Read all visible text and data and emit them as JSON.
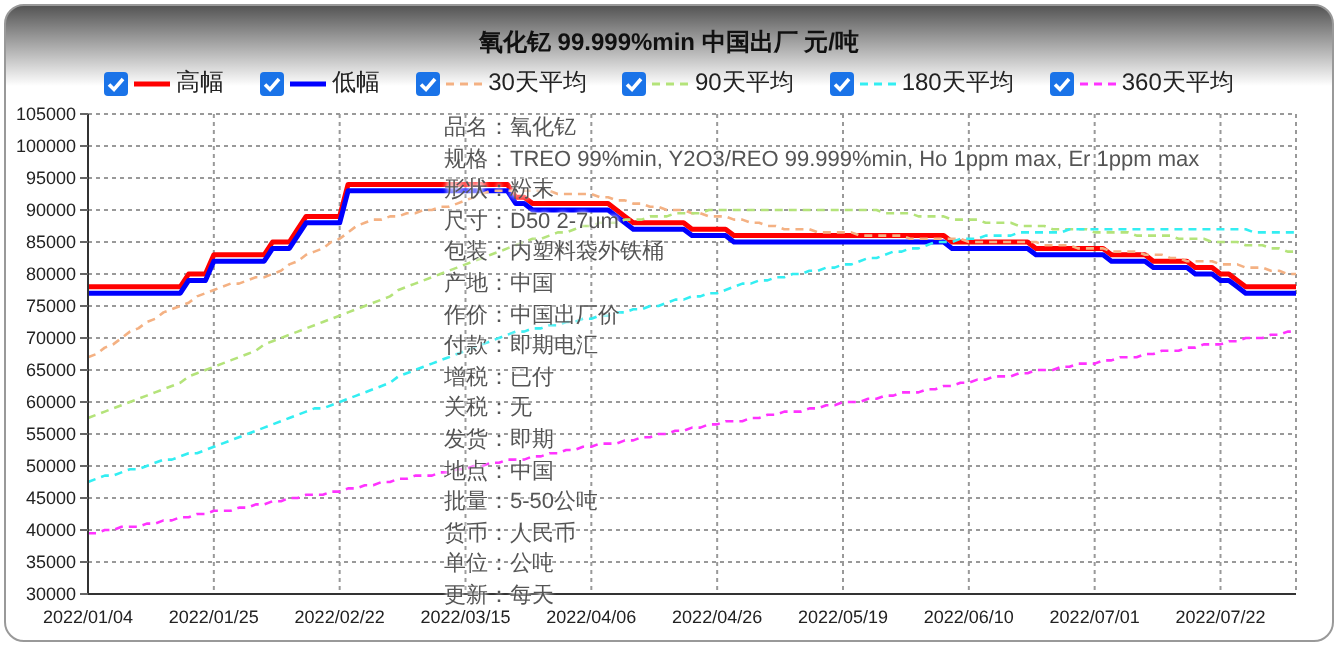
{
  "chart_data": {
    "type": "line",
    "title": "氧化钇 99.999%min 中国出厂 元/吨",
    "categories": [
      "2022/01/04",
      null,
      null,
      null,
      null,
      null,
      null,
      null,
      null,
      null,
      null,
      null,
      null,
      null,
      null,
      "2022/01/25",
      null,
      null,
      null,
      null,
      null,
      null,
      null,
      null,
      null,
      null,
      null,
      null,
      null,
      null,
      "2022/02/22",
      null,
      null,
      null,
      null,
      null,
      null,
      null,
      null,
      null,
      null,
      null,
      null,
      null,
      null,
      "2022/03/15",
      null,
      null,
      null,
      null,
      null,
      null,
      null,
      null,
      null,
      null,
      null,
      null,
      null,
      null,
      "2022/04/06",
      null,
      null,
      null,
      null,
      null,
      null,
      null,
      null,
      null,
      null,
      null,
      null,
      null,
      null,
      "2022/04/26",
      null,
      null,
      null,
      null,
      null,
      null,
      null,
      null,
      null,
      null,
      null,
      null,
      null,
      null,
      "2022/05/19",
      null,
      null,
      null,
      null,
      null,
      null,
      null,
      null,
      null,
      null,
      null,
      null,
      null,
      null,
      "2022/06/10",
      null,
      null,
      null,
      null,
      null,
      null,
      null,
      null,
      null,
      null,
      null,
      null,
      null,
      null,
      "2022/07/01",
      null,
      null,
      null,
      null,
      null,
      null,
      null,
      null,
      null,
      null,
      null,
      null,
      null,
      null,
      "2022/07/22",
      null,
      null,
      null,
      null,
      null,
      null,
      null,
      null,
      null
    ],
    "series": [
      {
        "name": "高幅",
        "color": "#ff0000",
        "line_style": "solid",
        "values": [
          78000,
          78000,
          78000,
          78000,
          78000,
          78000,
          78000,
          78000,
          78000,
          78000,
          78000,
          78000,
          80000,
          80000,
          80000,
          83000,
          83000,
          83000,
          83000,
          83000,
          83000,
          83000,
          85000,
          85000,
          85000,
          87000,
          89000,
          89000,
          89000,
          89000,
          89000,
          94000,
          94000,
          94000,
          94000,
          94000,
          94000,
          94000,
          94000,
          94000,
          94000,
          94000,
          94000,
          94000,
          94000,
          94000,
          94000,
          94000,
          94000,
          94000,
          94000,
          92000,
          92000,
          91000,
          91000,
          91000,
          91000,
          91000,
          91000,
          91000,
          91000,
          91000,
          91000,
          90000,
          89000,
          88000,
          88000,
          88000,
          88000,
          88000,
          88000,
          88000,
          87000,
          87000,
          87000,
          87000,
          87000,
          86000,
          86000,
          86000,
          86000,
          86000,
          86000,
          86000,
          86000,
          86000,
          86000,
          86000,
          86000,
          86000,
          86000,
          86000,
          86000,
          86000,
          86000,
          86000,
          86000,
          86000,
          86000,
          86000,
          86000,
          86000,
          86000,
          85000,
          85000,
          85000,
          85000,
          85000,
          85000,
          85000,
          85000,
          85000,
          85000,
          84000,
          84000,
          84000,
          84000,
          84000,
          84000,
          84000,
          84000,
          84000,
          83000,
          83000,
          83000,
          83000,
          83000,
          82000,
          82000,
          82000,
          82000,
          82000,
          81000,
          81000,
          81000,
          80000,
          80000,
          79000,
          78000,
          78000,
          78000,
          78000,
          78000,
          78000,
          78000
        ]
      },
      {
        "name": "低幅",
        "color": "#0000ff",
        "line_style": "solid",
        "values": [
          77000,
          77000,
          77000,
          77000,
          77000,
          77000,
          77000,
          77000,
          77000,
          77000,
          77000,
          77000,
          79000,
          79000,
          79000,
          82000,
          82000,
          82000,
          82000,
          82000,
          82000,
          82000,
          84000,
          84000,
          84000,
          86000,
          88000,
          88000,
          88000,
          88000,
          88000,
          93000,
          93000,
          93000,
          93000,
          93000,
          93000,
          93000,
          93000,
          93000,
          93000,
          93000,
          93000,
          93000,
          93000,
          93000,
          93000,
          93000,
          93000,
          93000,
          93000,
          91000,
          91000,
          90000,
          90000,
          90000,
          90000,
          90000,
          90000,
          90000,
          90000,
          90000,
          90000,
          89000,
          88000,
          87000,
          87000,
          87000,
          87000,
          87000,
          87000,
          87000,
          86000,
          86000,
          86000,
          86000,
          86000,
          85000,
          85000,
          85000,
          85000,
          85000,
          85000,
          85000,
          85000,
          85000,
          85000,
          85000,
          85000,
          85000,
          85000,
          85000,
          85000,
          85000,
          85000,
          85000,
          85000,
          85000,
          85000,
          85000,
          85000,
          85000,
          85000,
          84000,
          84000,
          84000,
          84000,
          84000,
          84000,
          84000,
          84000,
          84000,
          84000,
          83000,
          83000,
          83000,
          83000,
          83000,
          83000,
          83000,
          83000,
          83000,
          82000,
          82000,
          82000,
          82000,
          82000,
          81000,
          81000,
          81000,
          81000,
          81000,
          80000,
          80000,
          80000,
          79000,
          79000,
          78000,
          77000,
          77000,
          77000,
          77000,
          77000,
          77000,
          77000
        ]
      },
      {
        "name": "30天平均",
        "color": "#f4b183",
        "line_style": "dashed",
        "values": [
          67000,
          67500,
          68500,
          69000,
          70000,
          71000,
          71500,
          72500,
          73000,
          74000,
          74500,
          75000,
          75500,
          76500,
          77000,
          77500,
          78000,
          78500,
          78500,
          79000,
          79500,
          79500,
          80000,
          80500,
          81500,
          82000,
          83000,
          83500,
          84000,
          85000,
          85500,
          86500,
          87500,
          88000,
          88500,
          88500,
          89000,
          89000,
          89500,
          89500,
          90000,
          90000,
          90500,
          90500,
          91000,
          91500,
          92000,
          92500,
          93000,
          93000,
          93000,
          93000,
          93000,
          93000,
          93000,
          93000,
          92500,
          92500,
          92500,
          92500,
          92500,
          92000,
          92000,
          91500,
          91500,
          91000,
          91000,
          90500,
          90500,
          90000,
          90000,
          90000,
          89500,
          89500,
          89000,
          89000,
          89000,
          88500,
          88500,
          88000,
          88000,
          87500,
          87500,
          87000,
          87000,
          87000,
          87000,
          86500,
          86500,
          86500,
          86500,
          86500,
          86000,
          86000,
          86000,
          86000,
          86000,
          86000,
          85500,
          85500,
          85500,
          85500,
          85500,
          85500,
          85500,
          85000,
          85000,
          85000,
          85000,
          85000,
          85000,
          85000,
          85000,
          85000,
          84500,
          84500,
          84500,
          84500,
          84000,
          84000,
          84000,
          84000,
          83500,
          83500,
          83500,
          83500,
          83000,
          83000,
          83000,
          82500,
          82500,
          82000,
          82000,
          82000,
          82000,
          81500,
          81500,
          81500,
          81000,
          81000,
          81000,
          80500,
          80500,
          80000,
          80000
        ]
      },
      {
        "name": "90天平均",
        "color": "#b4e37a",
        "line_style": "dashed",
        "values": [
          57500,
          58000,
          58500,
          59000,
          59500,
          60000,
          60500,
          61000,
          61500,
          62000,
          62500,
          63000,
          64000,
          64500,
          65000,
          65500,
          66000,
          66500,
          67000,
          67500,
          68000,
          69000,
          69500,
          70000,
          70500,
          71000,
          71500,
          72000,
          72500,
          73000,
          73500,
          74000,
          74500,
          75000,
          75500,
          76000,
          76500,
          77500,
          78000,
          78500,
          79000,
          79500,
          80000,
          80500,
          81000,
          81500,
          82000,
          82500,
          83000,
          83500,
          84000,
          84500,
          85000,
          85500,
          85500,
          86000,
          86500,
          86500,
          87000,
          87500,
          87500,
          88000,
          88000,
          88000,
          88500,
          88500,
          88500,
          89000,
          89000,
          89000,
          89500,
          89500,
          89500,
          89500,
          90000,
          90000,
          90000,
          90000,
          90000,
          90000,
          90000,
          90000,
          90000,
          90000,
          90000,
          90000,
          90000,
          90000,
          90000,
          90000,
          90000,
          90000,
          90000,
          90000,
          90000,
          89500,
          89500,
          89500,
          89500,
          89000,
          89000,
          89000,
          89000,
          88500,
          88500,
          88500,
          88500,
          88000,
          88000,
          88000,
          88000,
          87500,
          87500,
          87500,
          87500,
          87000,
          87000,
          87000,
          87000,
          87000,
          86500,
          86500,
          86500,
          86500,
          86500,
          86000,
          86000,
          86000,
          86000,
          86000,
          85500,
          85500,
          85500,
          85500,
          85000,
          85000,
          85000,
          85000,
          84500,
          84500,
          84500,
          84000,
          84000,
          83500,
          83500
        ]
      },
      {
        "name": "180天平均",
        "color": "#33eef2",
        "line_style": "dashed",
        "values": [
          47500,
          48000,
          48500,
          48500,
          49000,
          49500,
          49500,
          50000,
          50500,
          51000,
          51000,
          51500,
          52000,
          52000,
          52500,
          53000,
          53500,
          54000,
          54500,
          55000,
          55500,
          56000,
          56500,
          57000,
          57500,
          58000,
          58500,
          59000,
          59000,
          59500,
          60000,
          60500,
          61000,
          61500,
          62000,
          62500,
          63000,
          64000,
          64500,
          65000,
          65500,
          66000,
          66500,
          67000,
          67500,
          68000,
          68500,
          69000,
          69500,
          70000,
          70500,
          71000,
          71000,
          71500,
          71500,
          72000,
          72000,
          72500,
          72500,
          73000,
          73000,
          73500,
          73500,
          74000,
          74000,
          74500,
          74500,
          75000,
          75000,
          75500,
          76000,
          76000,
          76500,
          76500,
          77000,
          77000,
          77500,
          78000,
          78500,
          78500,
          79000,
          79000,
          79500,
          79500,
          80000,
          80000,
          80500,
          80500,
          81000,
          81000,
          81500,
          81500,
          82000,
          82500,
          82500,
          83000,
          83500,
          83500,
          84000,
          84000,
          84500,
          85000,
          85000,
          85000,
          85500,
          85500,
          85500,
          86000,
          86000,
          86000,
          86000,
          86500,
          86500,
          86500,
          86500,
          86500,
          86500,
          87000,
          87000,
          87000,
          87000,
          87000,
          87000,
          87000,
          87000,
          87000,
          87000,
          87000,
          87000,
          87000,
          87000,
          87000,
          87000,
          87000,
          87000,
          87000,
          87000,
          87000,
          87000,
          86500,
          86500,
          86500,
          86500,
          86500,
          86500
        ]
      },
      {
        "name": "360天平均",
        "color": "#ff33ff",
        "line_style": "dashed",
        "values": [
          39500,
          39500,
          40000,
          40000,
          40500,
          40500,
          40500,
          41000,
          41000,
          41500,
          41500,
          42000,
          42000,
          42500,
          42500,
          43000,
          43000,
          43000,
          43500,
          43500,
          44000,
          44000,
          44500,
          44500,
          45000,
          45000,
          45500,
          45500,
          45500,
          46000,
          46000,
          46500,
          46500,
          47000,
          47000,
          47500,
          47500,
          48000,
          48000,
          48500,
          48500,
          48500,
          49000,
          49000,
          49500,
          49500,
          50000,
          50000,
          50500,
          50500,
          51000,
          51000,
          51000,
          51500,
          51500,
          52000,
          52000,
          52500,
          52500,
          53000,
          53000,
          53500,
          53500,
          53500,
          54000,
          54000,
          54500,
          54500,
          55000,
          55000,
          55500,
          55500,
          56000,
          56000,
          56500,
          56500,
          57000,
          57000,
          57000,
          57500,
          57500,
          58000,
          58000,
          58500,
          58500,
          58500,
          59000,
          59000,
          59500,
          59500,
          60000,
          60000,
          60000,
          60500,
          60500,
          61000,
          61000,
          61500,
          61500,
          61500,
          62000,
          62000,
          62500,
          62500,
          63000,
          63000,
          63500,
          63500,
          64000,
          64000,
          64000,
          64500,
          64500,
          65000,
          65000,
          65000,
          65500,
          65500,
          66000,
          66000,
          66000,
          66500,
          66500,
          67000,
          67000,
          67000,
          67500,
          67500,
          68000,
          68000,
          68000,
          68500,
          68500,
          69000,
          69000,
          69000,
          69500,
          69500,
          70000,
          70000,
          70000,
          70500,
          70500,
          71000,
          71000
        ]
      }
    ],
    "ylim": [
      30000,
      105000
    ],
    "yticks": [
      30000,
      35000,
      40000,
      45000,
      50000,
      55000,
      60000,
      65000,
      70000,
      75000,
      80000,
      85000,
      90000,
      95000,
      100000,
      105000
    ],
    "grid": true,
    "legend": "top",
    "marker": "none",
    "annotations": [
      "品名：氧化钇",
      "规格：TREO 99%min, Y2O3/REO 99.999%min, Ho 1ppm max, Er 1ppm max",
      "形状：粉末",
      "尺寸：D50 2-7um",
      "包装：内塑料袋外铁桶",
      "产地：中国",
      "作价：中国出厂价",
      "付款：即期电汇",
      "增税：已付",
      "关税：无",
      "发货：即期",
      "地点：中国",
      "批量：5-50公吨",
      "货币：人民币",
      "单位：公吨",
      "更新：每天"
    ]
  }
}
